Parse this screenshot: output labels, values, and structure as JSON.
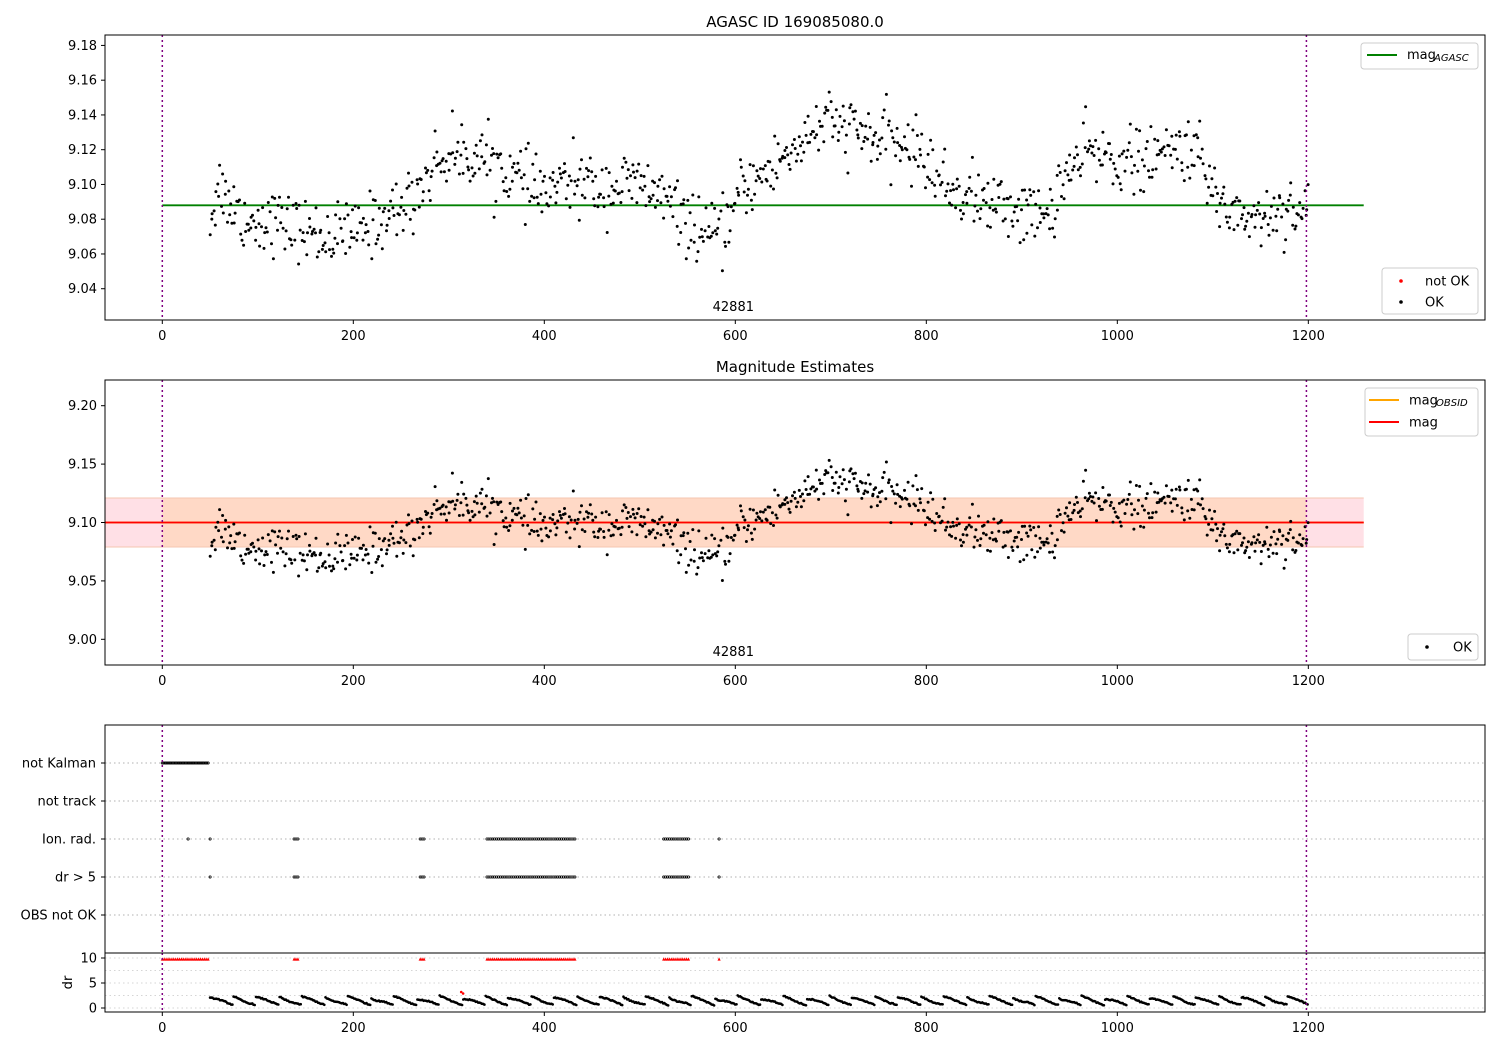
{
  "chart_data": [
    {
      "type": "scatter",
      "title": "AGASC ID 169085080.0",
      "annotation": "42881",
      "xlim": [
        -60,
        1385
      ],
      "ylim": [
        9.022,
        9.186
      ],
      "xticks": [
        0,
        200,
        400,
        600,
        800,
        1000,
        1200
      ],
      "yticks": [
        9.04,
        9.06,
        9.08,
        9.1,
        9.12,
        9.14,
        9.16,
        9.18
      ],
      "ytick_labels": [
        "9.04",
        "9.06",
        "9.08",
        "9.10",
        "9.12",
        "9.14",
        "9.16",
        "9.18"
      ],
      "vlines": [
        0,
        1198
      ],
      "hline": {
        "name": "mag_AGASC",
        "label_main": "mag",
        "label_sub": "AGASC",
        "value": 9.088,
        "x_range": [
          0,
          1258
        ],
        "color": "#008000"
      },
      "legend_top": [
        {
          "kind": "line",
          "label_main": "mag",
          "label_sub": "AGASC",
          "color": "#008000"
        }
      ],
      "legend_bottom": [
        {
          "kind": "dot",
          "label": "not OK",
          "color": "#ff0000"
        },
        {
          "kind": "dot",
          "label": "OK",
          "color": "#000000"
        }
      ],
      "grid": false,
      "series_color": "#000000",
      "trend": {
        "x": [
          50,
          60,
          70,
          90,
          110,
          140,
          170,
          200,
          230,
          260,
          290,
          320,
          350,
          380,
          400,
          430,
          460,
          490,
          520,
          540,
          560,
          575,
          590,
          610,
          630,
          660,
          690,
          720,
          750,
          780,
          800,
          820,
          840,
          870,
          900,
          925,
          945,
          970,
          1000,
          1030,
          1060,
          1080,
          1100,
          1120,
          1150,
          1180,
          1200
        ],
        "y": [
          9.08,
          9.1,
          9.09,
          9.078,
          9.08,
          9.075,
          9.07,
          9.072,
          9.08,
          9.09,
          9.115,
          9.118,
          9.112,
          9.1,
          9.095,
          9.102,
          9.098,
          9.1,
          9.095,
          9.082,
          9.075,
          9.068,
          9.075,
          9.1,
          9.105,
          9.12,
          9.135,
          9.132,
          9.125,
          9.122,
          9.115,
          9.098,
          9.095,
          9.088,
          9.085,
          9.08,
          9.105,
          9.118,
          9.115,
          9.112,
          9.12,
          9.122,
          9.095,
          9.085,
          9.08,
          9.088,
          9.083
        ]
      },
      "noise": 0.009,
      "x_start": 50,
      "x_end": 1200,
      "n_points": 900
    },
    {
      "type": "scatter",
      "title": "Magnitude Estimates",
      "annotation": "42881",
      "xlim": [
        -60,
        1385
      ],
      "ylim": [
        8.978,
        9.222
      ],
      "xticks": [
        0,
        200,
        400,
        600,
        800,
        1000,
        1200
      ],
      "yticks": [
        9.0,
        9.05,
        9.1,
        9.15,
        9.2
      ],
      "ytick_labels": [
        "9.00",
        "9.05",
        "9.10",
        "9.15",
        "9.20"
      ],
      "vlines": [
        0,
        1198
      ],
      "band": {
        "low": 9.079,
        "high": 9.121,
        "x_range": [
          -60,
          1258
        ],
        "inner_x_range": [
          0,
          1198
        ],
        "outer_color": "#ffe0e6",
        "inner_color": "#ffd9c6"
      },
      "lines": [
        {
          "name": "mag_OBSID",
          "value": 9.1,
          "color": "#ffa500"
        },
        {
          "name": "mag",
          "value": 9.1,
          "color": "#ff0000"
        }
      ],
      "legend_top": [
        {
          "kind": "line",
          "label_main": "mag",
          "label_sub": "OBSID",
          "color": "#ffa500"
        },
        {
          "kind": "line",
          "label_main": "mag",
          "label_sub": "",
          "color": "#ff0000"
        }
      ],
      "legend_bottom": [
        {
          "kind": "dot",
          "label": "OK",
          "color": "#000000"
        }
      ],
      "grid": false,
      "same_points_as": 0
    },
    {
      "type": "scatter",
      "title": "",
      "xlim": [
        -60,
        1385
      ],
      "categories": [
        "not Kalman",
        "not track",
        "Ion. rad.",
        "dr > 5",
        "OBS not OK"
      ],
      "vlines": [
        0,
        1198
      ],
      "grid": true,
      "flags": [
        {
          "category": "not Kalman",
          "ranges": [
            [
              0,
              48
            ]
          ],
          "step": 1.5,
          "color": "#000000"
        },
        {
          "category": "not track",
          "ranges": [],
          "step": 1,
          "color": "#000000"
        },
        {
          "category": "Ion. rad.",
          "ranges": [
            [
              27,
              27
            ],
            [
              50,
              50
            ],
            [
              138,
              142
            ],
            [
              270,
              275
            ],
            [
              340,
              432
            ],
            [
              525,
              552
            ],
            [
              583,
              583
            ]
          ],
          "step": 2,
          "color": "#000000"
        },
        {
          "category": "dr > 5",
          "ranges": [
            [
              50,
              50
            ],
            [
              138,
              142
            ],
            [
              270,
              275
            ],
            [
              340,
              432
            ],
            [
              525,
              552
            ],
            [
              583,
              583
            ]
          ],
          "step": 2,
          "color": "#000000"
        },
        {
          "category": "OBS not OK",
          "ranges": [],
          "step": 1,
          "color": "#000000"
        }
      ]
    },
    {
      "type": "line",
      "title": "",
      "xlim": [
        -60,
        1385
      ],
      "ylim": [
        -0.8,
        11
      ],
      "xticks": [
        0,
        200,
        400,
        600,
        800,
        1000,
        1200
      ],
      "yticks": [
        0,
        5,
        10
      ],
      "ytick_labels": [
        "0",
        "5",
        "10"
      ],
      "ylabel": "dr",
      "vlines": [
        0,
        1198
      ],
      "grid": true,
      "capped_markers": {
        "value": 9.8,
        "ranges": [
          [
            0,
            48
          ],
          [
            138,
            142
          ],
          [
            270,
            275
          ],
          [
            340,
            432
          ],
          [
            525,
            552
          ],
          [
            583,
            583
          ]
        ],
        "step": 2,
        "color": "#ff0000"
      },
      "dr_series": {
        "x_start": 50,
        "x_end": 1200,
        "step": 1.3,
        "period": 24,
        "base": 0.6,
        "amp": 1.9,
        "color": "#000000"
      },
      "red_points": [
        {
          "x": 313,
          "y": 3.2
        },
        {
          "x": 315,
          "y": 2.9
        }
      ]
    }
  ]
}
